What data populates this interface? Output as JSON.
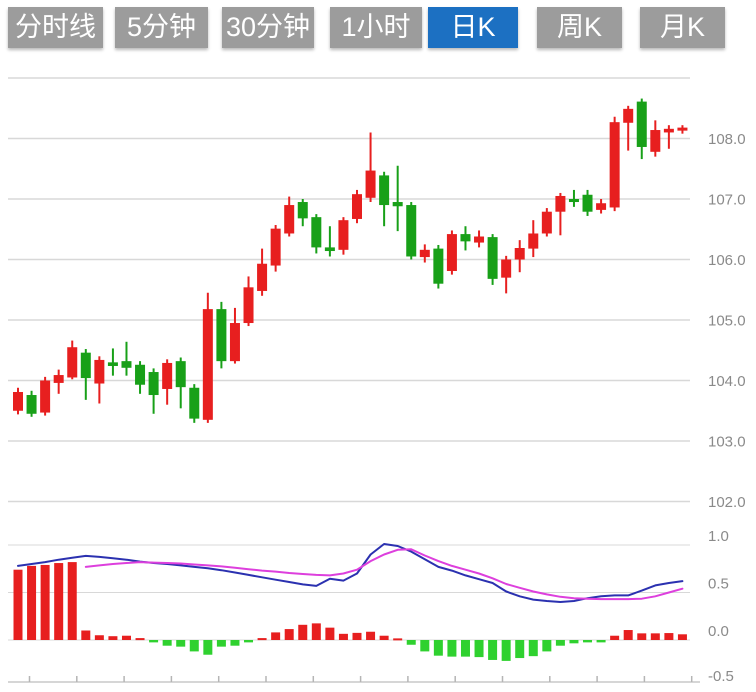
{
  "tabbar": {
    "items": [
      {
        "label": "分时线",
        "active": false
      },
      {
        "label": "5分钟",
        "active": false
      },
      {
        "label": "30分钟",
        "active": false
      },
      {
        "label": "1小时",
        "active": false
      },
      {
        "label": "日K",
        "active": true
      },
      {
        "label": "周K",
        "active": false
      },
      {
        "label": "月K",
        "active": false
      }
    ]
  },
  "colors": {
    "tab_bg": "#9c9c9c",
    "tab_active_bg": "#1c70c2",
    "tab_text": "#ffffff",
    "candle_up": "#e71f1f",
    "candle_down": "#18a018",
    "macd_bar_up": "#e71f1f",
    "macd_bar_down": "#2fd12f",
    "dif_line": "#2b31b0",
    "dea_line": "#dd3fdd",
    "grid": "#d8d8d8",
    "axis_text": "#8a8a8a",
    "axis_line": "#c9c9c9",
    "tick": "#b5b5b5"
  },
  "chart_data": {
    "type": "candlestick",
    "convention": "red=up, green=down",
    "price_panel": {
      "grid_values": [
        109,
        108,
        107,
        106,
        105,
        104,
        103,
        102
      ],
      "axis_labels": [
        {
          "v": 108,
          "t": "108.0"
        },
        {
          "v": 107,
          "t": "107.0"
        },
        {
          "v": 106,
          "t": "106.0"
        },
        {
          "v": 105,
          "t": "105.0"
        },
        {
          "v": 104,
          "t": "104.0"
        },
        {
          "v": 103,
          "t": "103.0"
        },
        {
          "v": 102,
          "t": "102.0"
        }
      ],
      "ylim": [
        101.8,
        109.1
      ],
      "candles_ohlc_order": [
        "open",
        "high",
        "low",
        "close"
      ],
      "candles": [
        [
          103.5,
          103.88,
          103.44,
          103.81
        ],
        [
          103.76,
          103.83,
          103.4,
          103.45
        ],
        [
          103.47,
          104.06,
          103.42,
          104.0
        ],
        [
          103.96,
          104.18,
          103.78,
          104.09
        ],
        [
          104.05,
          104.66,
          104.02,
          104.55
        ],
        [
          104.46,
          104.52,
          103.68,
          104.04
        ],
        [
          103.95,
          104.4,
          103.62,
          104.34
        ],
        [
          104.3,
          104.53,
          104.08,
          104.24
        ],
        [
          104.32,
          104.64,
          104.08,
          104.21
        ],
        [
          104.26,
          104.32,
          103.78,
          103.93
        ],
        [
          104.14,
          104.2,
          103.45,
          103.76
        ],
        [
          103.86,
          104.35,
          103.6,
          104.29
        ],
        [
          104.32,
          104.38,
          103.54,
          103.89
        ],
        [
          103.88,
          103.94,
          103.3,
          103.37
        ],
        [
          103.35,
          105.45,
          103.3,
          105.18
        ],
        [
          105.18,
          105.3,
          104.2,
          104.32
        ],
        [
          104.32,
          105.2,
          104.28,
          104.95
        ],
        [
          104.95,
          105.72,
          104.9,
          105.54
        ],
        [
          105.48,
          106.18,
          105.4,
          105.93
        ],
        [
          105.9,
          106.57,
          105.8,
          106.51
        ],
        [
          106.43,
          107.04,
          106.38,
          106.9
        ],
        [
          106.95,
          107.0,
          106.55,
          106.68
        ],
        [
          106.7,
          106.75,
          106.1,
          106.2
        ],
        [
          106.2,
          106.55,
          106.05,
          106.14
        ],
        [
          106.16,
          106.7,
          106.08,
          106.65
        ],
        [
          106.67,
          107.15,
          106.6,
          107.08
        ],
        [
          107.02,
          108.1,
          106.95,
          107.47
        ],
        [
          107.39,
          107.45,
          106.55,
          106.9
        ],
        [
          106.95,
          107.55,
          106.47,
          106.88
        ],
        [
          106.9,
          106.95,
          106.0,
          106.05
        ],
        [
          106.04,
          106.25,
          105.95,
          106.16
        ],
        [
          106.18,
          106.24,
          105.52,
          105.6
        ],
        [
          105.81,
          106.48,
          105.75,
          106.42
        ],
        [
          106.42,
          106.55,
          106.15,
          106.3
        ],
        [
          106.28,
          106.48,
          106.2,
          106.38
        ],
        [
          106.37,
          106.42,
          105.58,
          105.68
        ],
        [
          105.7,
          106.06,
          105.44,
          106.0
        ],
        [
          106.0,
          106.32,
          105.79,
          106.19
        ],
        [
          106.18,
          106.65,
          106.04,
          106.43
        ],
        [
          106.43,
          106.85,
          106.38,
          106.79
        ],
        [
          106.79,
          107.1,
          106.4,
          107.05
        ],
        [
          107.0,
          107.15,
          106.87,
          106.95
        ],
        [
          107.07,
          107.15,
          106.72,
          106.79
        ],
        [
          106.82,
          107.0,
          106.76,
          106.93
        ],
        [
          106.86,
          108.36,
          106.8,
          108.27
        ],
        [
          108.26,
          108.54,
          107.8,
          108.49
        ],
        [
          108.61,
          108.66,
          107.66,
          107.86
        ],
        [
          107.78,
          108.3,
          107.7,
          108.14
        ],
        [
          108.1,
          108.22,
          107.83,
          108.16
        ],
        [
          108.13,
          108.22,
          108.08,
          108.18
        ]
      ]
    },
    "macd_panel": {
      "grid_values": [
        1.0,
        0.5
      ],
      "zero_value": 0.0,
      "axis_labels": [
        {
          "v": 1.0,
          "t": "1.0"
        },
        {
          "v": 0.5,
          "t": "0.5"
        },
        {
          "v": 0.0,
          "t": "0.0"
        },
        {
          "v": -0.5,
          "t": "-0.5"
        }
      ],
      "ylim": [
        -0.5,
        1.1
      ],
      "histogram": [
        0.74,
        0.78,
        0.79,
        0.81,
        0.82,
        0.1,
        0.05,
        0.04,
        0.045,
        0.02,
        -0.025,
        -0.06,
        -0.07,
        -0.12,
        -0.155,
        -0.07,
        -0.06,
        -0.025,
        0.02,
        0.08,
        0.115,
        0.16,
        0.175,
        0.13,
        0.065,
        0.075,
        0.087,
        0.045,
        0.017,
        -0.05,
        -0.12,
        -0.165,
        -0.175,
        -0.175,
        -0.18,
        -0.21,
        -0.22,
        -0.19,
        -0.17,
        -0.12,
        -0.06,
        -0.035,
        -0.025,
        -0.025,
        0.045,
        0.105,
        0.07,
        0.07,
        0.073,
        0.06
      ],
      "dif": [
        0.78,
        0.8,
        0.82,
        0.845,
        0.865,
        0.885,
        0.875,
        0.86,
        0.845,
        0.825,
        0.81,
        0.8,
        0.785,
        0.77,
        0.755,
        0.735,
        0.71,
        0.685,
        0.66,
        0.635,
        0.61,
        0.585,
        0.57,
        0.645,
        0.625,
        0.7,
        0.9,
        1.01,
        0.99,
        0.93,
        0.85,
        0.77,
        0.73,
        0.68,
        0.64,
        0.6,
        0.51,
        0.46,
        0.425,
        0.41,
        0.4,
        0.41,
        0.44,
        0.46,
        0.47,
        0.47,
        0.52,
        0.575,
        0.6,
        0.62
      ],
      "dea": [
        null,
        null,
        null,
        null,
        null,
        0.77,
        0.785,
        0.8,
        0.81,
        0.82,
        0.815,
        0.81,
        0.805,
        0.795,
        0.785,
        0.775,
        0.76,
        0.745,
        0.73,
        0.72,
        0.705,
        0.695,
        0.685,
        0.68,
        0.7,
        0.74,
        0.83,
        0.9,
        0.95,
        0.955,
        0.89,
        0.83,
        0.78,
        0.74,
        0.7,
        0.65,
        0.59,
        0.55,
        0.51,
        0.48,
        0.455,
        0.44,
        0.435,
        0.43,
        0.43,
        0.43,
        0.435,
        0.46,
        0.5,
        0.54
      ]
    }
  }
}
